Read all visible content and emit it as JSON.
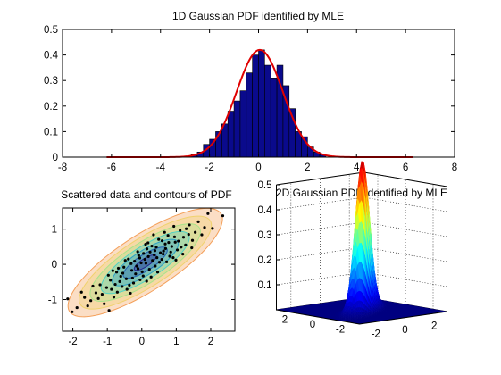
{
  "chart_data": [
    {
      "type": "bar",
      "overlay": "line",
      "title": "1D Gaussian PDF identified by MLE",
      "xlabel": "",
      "ylabel": "",
      "xlim": [
        -8,
        8
      ],
      "ylim": [
        0,
        0.5
      ],
      "x_ticks": [
        -8,
        -6,
        -4,
        -2,
        0,
        2,
        4,
        6,
        8
      ],
      "y_ticks": [
        0,
        0.1,
        0.2,
        0.3,
        0.4,
        0.5
      ],
      "bin_width": 0.25,
      "bins": [
        {
          "x": -2.625,
          "value": 0.01
        },
        {
          "x": -2.375,
          "value": 0.02
        },
        {
          "x": -2.125,
          "value": 0.05
        },
        {
          "x": -1.875,
          "value": 0.07
        },
        {
          "x": -1.625,
          "value": 0.1
        },
        {
          "x": -1.375,
          "value": 0.13
        },
        {
          "x": -1.125,
          "value": 0.18
        },
        {
          "x": -0.875,
          "value": 0.22
        },
        {
          "x": -0.625,
          "value": 0.26
        },
        {
          "x": -0.375,
          "value": 0.33
        },
        {
          "x": -0.125,
          "value": 0.4
        },
        {
          "x": 0.125,
          "value": 0.42
        },
        {
          "x": 0.375,
          "value": 0.36
        },
        {
          "x": 0.625,
          "value": 0.31
        },
        {
          "x": 0.875,
          "value": 0.36
        },
        {
          "x": 1.125,
          "value": 0.28
        },
        {
          "x": 1.375,
          "value": 0.19
        },
        {
          "x": 1.625,
          "value": 0.1
        },
        {
          "x": 1.875,
          "value": 0.08
        },
        {
          "x": 2.125,
          "value": 0.04
        },
        {
          "x": 2.375,
          "value": 0.02
        },
        {
          "x": 2.625,
          "value": 0.01
        }
      ],
      "fit": {
        "mu": 0.05,
        "sigma": 0.95,
        "x_range": [
          -6.2,
          6.3
        ]
      },
      "colors": {
        "bars": "#0a0a8c",
        "bar_edge": "#000000",
        "fit": "#e00000"
      },
      "grid": false
    },
    {
      "type": "scatter",
      "overlay": "contour",
      "title": "Scattered data and contours of PDF",
      "xlabel": "",
      "ylabel": "",
      "xlim": [
        -2.3,
        2.7
      ],
      "ylim": [
        -1.9,
        1.6
      ],
      "x_ticks": [
        -2,
        -1,
        0,
        1,
        2
      ],
      "y_ticks": [
        -1,
        0,
        1
      ],
      "gaussian": {
        "mu": [
          0.1,
          0.05
        ],
        "sx": 0.8,
        "sy": 0.55,
        "rho": 0.8
      },
      "contour_levels": [
        0.4,
        0.8,
        1.2,
        1.6,
        2.0,
        2.4,
        2.8
      ],
      "points": [
        [
          0.12,
          0.03
        ],
        [
          -0.45,
          -0.41
        ],
        [
          0.68,
          0.58
        ],
        [
          1.21,
          0.77
        ],
        [
          -1.02,
          -0.66
        ],
        [
          0.31,
          0.11
        ],
        [
          -0.18,
          -0.27
        ],
        [
          0.84,
          0.35
        ],
        [
          -0.73,
          -0.22
        ],
        [
          0.05,
          0.31
        ],
        [
          1.55,
          0.91
        ],
        [
          -1.48,
          -1.03
        ],
        [
          0.42,
          0.49
        ],
        [
          -0.31,
          0.02
        ],
        [
          0.97,
          0.63
        ],
        [
          -0.88,
          -0.71
        ],
        [
          0.22,
          -0.14
        ],
        [
          -0.06,
          0.18
        ],
        [
          1.38,
          1.12
        ],
        [
          -1.21,
          -0.58
        ],
        [
          0.58,
          0.14
        ],
        [
          -0.52,
          -0.08
        ],
        [
          0.15,
          0.44
        ],
        [
          0.76,
          0.82
        ],
        [
          -0.64,
          -0.49
        ],
        [
          1.03,
          0.41
        ],
        [
          -0.24,
          -0.53
        ],
        [
          0.36,
          0.27
        ],
        [
          -1.66,
          -0.94
        ],
        [
          1.82,
          1.05
        ],
        [
          0.01,
          -0.21
        ],
        [
          -0.39,
          0.15
        ],
        [
          0.91,
          0.19
        ],
        [
          -0.97,
          -0.31
        ],
        [
          0.49,
          0.71
        ],
        [
          1.27,
          0.55
        ],
        [
          -0.12,
          0.36
        ],
        [
          -0.81,
          -0.93
        ],
        [
          0.63,
          0.38
        ],
        [
          0.27,
          -0.36
        ],
        [
          -1.33,
          -0.81
        ],
        [
          1.11,
          0.96
        ],
        [
          -0.57,
          -0.63
        ],
        [
          0.18,
          0.61
        ],
        [
          0.72,
          0.07
        ],
        [
          -0.29,
          -0.17
        ],
        [
          1.47,
          0.68
        ],
        [
          -1.09,
          -1.12
        ],
        [
          0.39,
          -0.05
        ],
        [
          -0.05,
          -0.44
        ],
        [
          0.87,
          0.51
        ],
        [
          -0.68,
          -0.11
        ],
        [
          1.64,
          1.21
        ],
        [
          -1.88,
          -1.23
        ],
        [
          0.09,
          0.14
        ],
        [
          0.54,
          0.33
        ],
        [
          -0.43,
          -0.71
        ],
        [
          1.19,
          0.29
        ],
        [
          -0.91,
          -0.45
        ],
        [
          0.29,
          0.52
        ],
        [
          -0.21,
          0.09
        ],
        [
          0.66,
          0.91
        ],
        [
          -1.42,
          -0.62
        ],
        [
          1.36,
          0.85
        ],
        [
          0.04,
          -0.33
        ],
        [
          -0.61,
          -0.34
        ],
        [
          0.95,
          0.78
        ],
        [
          -0.15,
          -0.05
        ],
        [
          0.44,
          0.19
        ],
        [
          -1.15,
          -0.85
        ],
        [
          2.05,
          1.02
        ],
        [
          -2.02,
          -1.35
        ],
        [
          0.81,
          0.23
        ],
        [
          -0.36,
          -0.59
        ],
        [
          0.24,
          0.35
        ],
        [
          1.06,
          0.66
        ],
        [
          -0.77,
          -0.57
        ],
        [
          0.51,
          0.06
        ],
        [
          -0.09,
          0.26
        ],
        [
          1.74,
          0.84
        ],
        [
          -1.57,
          -1.18
        ],
        [
          0.34,
          0.84
        ],
        [
          -0.48,
          0.11
        ],
        [
          1.29,
          1.01
        ],
        [
          0.14,
          -0.48
        ],
        [
          -0.84,
          -0.18
        ],
        [
          0.69,
          0.45
        ],
        [
          -0.27,
          -0.39
        ],
        [
          0.99,
          0.12
        ],
        [
          -1.26,
          -0.97
        ],
        [
          2.35,
          1.38
        ],
        [
          -2.15,
          -0.98
        ],
        [
          0.59,
          0.67
        ],
        [
          -0.02,
          0.04
        ],
        [
          0.46,
          -0.22
        ],
        [
          -0.71,
          -0.79
        ],
        [
          1.14,
          0.49
        ],
        [
          0.19,
          0.22
        ],
        [
          -0.55,
          -0.25
        ],
        [
          0.78,
          0.62
        ],
        [
          1.92,
          1.44
        ],
        [
          -1.75,
          -0.79
        ],
        [
          0.11,
          0.57
        ],
        [
          -0.33,
          -0.82
        ],
        [
          1.45,
          0.47
        ],
        [
          -0.95,
          -1.31
        ],
        [
          0.62,
          0.29
        ],
        [
          -0.11,
          -0.12
        ],
        [
          0.38,
          0.39
        ],
        [
          0.93,
          1.08
        ]
      ],
      "colors": {
        "points": "#000000",
        "contours": [
          "#23238c",
          "#1f5fb4",
          "#2aa0c8",
          "#4fd2c4",
          "#a8e38a",
          "#f0d26e",
          "#f4a05a"
        ]
      },
      "grid": false
    },
    {
      "type": "surface",
      "title": "2D Gaussian PDF identified by MLE",
      "xlabel": "",
      "ylabel": "",
      "zlabel": "",
      "x_range": [
        -3,
        3
      ],
      "y_range": [
        -3,
        3
      ],
      "zlim": [
        0,
        0.5
      ],
      "x_ticks": [
        -2,
        0,
        2
      ],
      "y_ticks": [
        -2,
        0,
        2
      ],
      "z_ticks": [
        0.1,
        0.2,
        0.3,
        0.4,
        0.5
      ],
      "gaussian": {
        "mu": [
          0.1,
          0.05
        ],
        "sx": 0.8,
        "sy": 0.55,
        "rho": 0.8
      },
      "colormap": "jet",
      "grid": true
    }
  ]
}
